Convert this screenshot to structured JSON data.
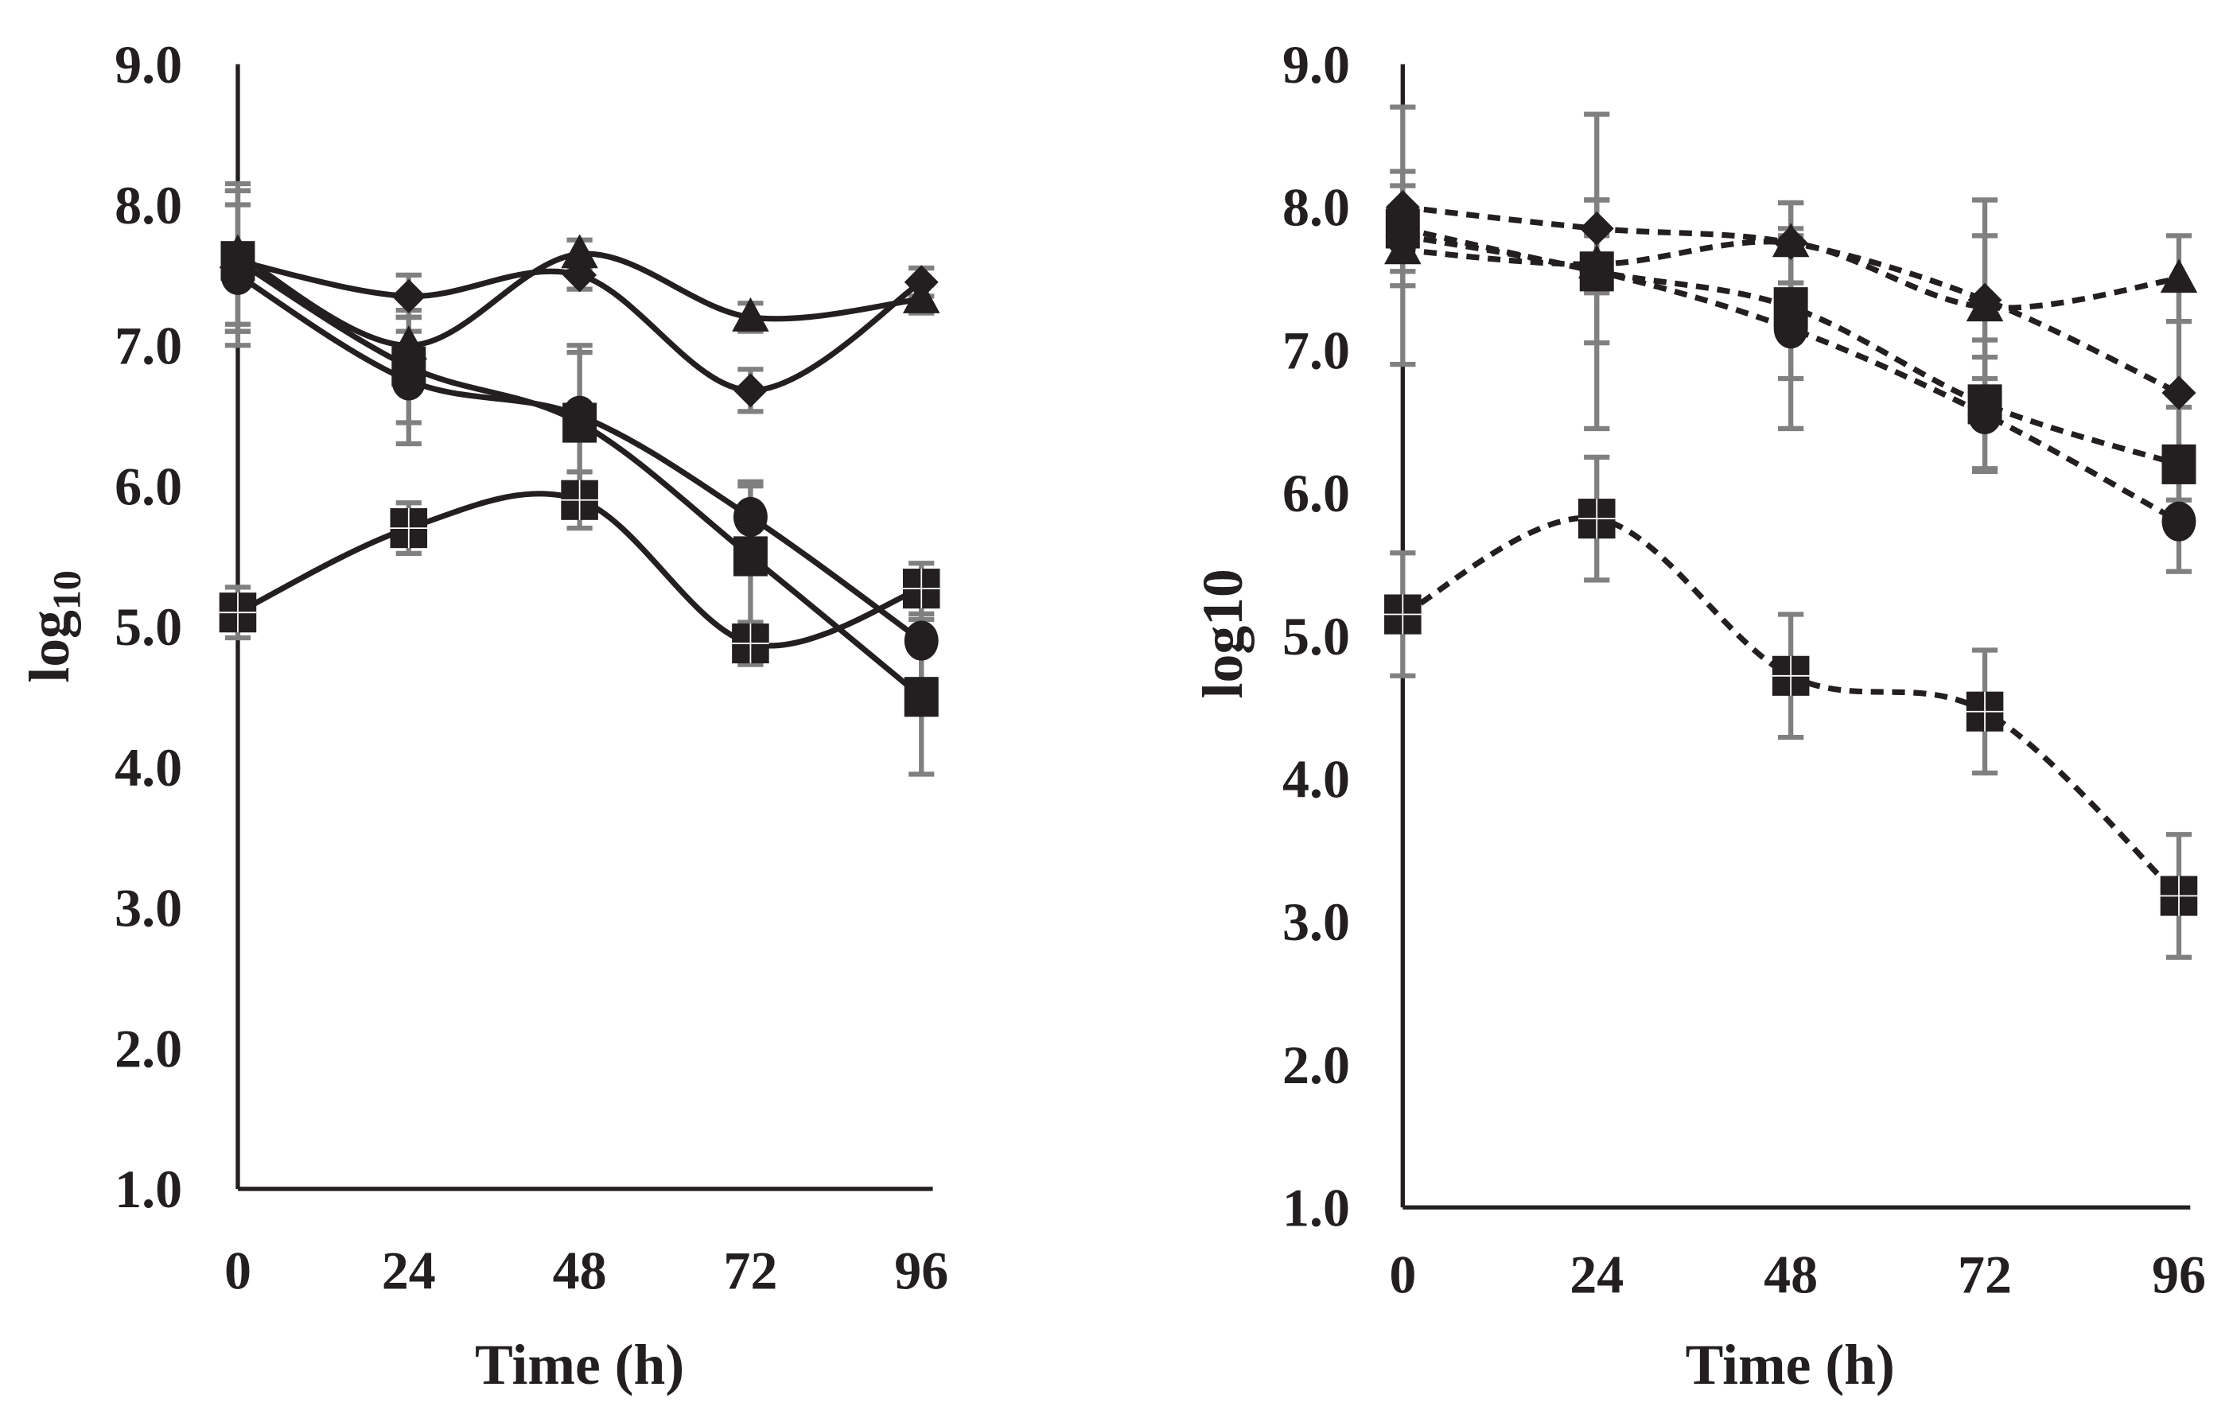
{
  "chart_data": [
    {
      "type": "line",
      "panel": "left",
      "xlabel": "Time (h)",
      "ylabel": "log",
      "ylabel_sub": "10",
      "x": [
        0,
        24,
        48,
        72,
        96
      ],
      "xticks": [
        "0",
        "24",
        "48",
        "72",
        "96"
      ],
      "ylim": [
        1.0,
        9.0
      ],
      "yticks": [
        "1.0",
        "2.0",
        "3.0",
        "4.0",
        "5.0",
        "6.0",
        "7.0",
        "8.0",
        "9.0"
      ],
      "line_style": "solid-smooth",
      "series": [
        {
          "marker": "diamond",
          "values": [
            7.6,
            7.35,
            7.5,
            6.68,
            7.45
          ],
          "err": [
            0.5,
            0.15,
            0.1,
            0.15,
            0.1
          ]
        },
        {
          "marker": "triangle",
          "values": [
            7.65,
            7.0,
            7.65,
            7.2,
            7.33
          ],
          "err": [
            0.5,
            0.1,
            0.1,
            0.1,
            0.1
          ]
        },
        {
          "marker": "circle",
          "values": [
            7.5,
            6.75,
            6.5,
            5.78,
            4.9
          ],
          "err": [
            0.5,
            0.45,
            0.5,
            0.25,
            0.35
          ]
        },
        {
          "marker": "square",
          "values": [
            7.6,
            6.85,
            6.45,
            5.5,
            4.5
          ],
          "err": [
            0.5,
            0.4,
            0.5,
            0.5,
            0.55
          ]
        },
        {
          "marker": "square-cross",
          "values": [
            5.1,
            5.7,
            5.9,
            4.88,
            5.27
          ],
          "err": [
            0.18,
            0.18,
            0.2,
            0.15,
            0.18
          ]
        }
      ]
    },
    {
      "type": "line",
      "panel": "right",
      "xlabel": "Time (h)",
      "ylabel": "log10",
      "x": [
        0,
        24,
        48,
        72,
        96
      ],
      "xticks": [
        "0",
        "24",
        "48",
        "72",
        "96"
      ],
      "ylim": [
        1.0,
        9.0
      ],
      "yticks": [
        "1.0",
        "2.0",
        "3.0",
        "4.0",
        "5.0",
        "6.0",
        "7.0",
        "8.0",
        "9.0"
      ],
      "line_style": "dashed",
      "series": [
        {
          "marker": "diamond",
          "values": [
            8.0,
            7.85,
            7.75,
            7.35,
            6.7
          ],
          "err": [
            0.15,
            0.2,
            0.28,
            0.7,
            0.75
          ]
        },
        {
          "marker": "triangle",
          "values": [
            7.7,
            7.6,
            7.75,
            7.3,
            7.5
          ],
          "err": [
            0.15,
            0.2,
            0.28,
            0.5,
            0.3
          ]
        },
        {
          "marker": "square",
          "values": [
            7.85,
            7.55,
            7.3,
            6.62,
            6.2
          ],
          "err": [
            0.4,
            0.5,
            0.5,
            0.45,
            0.4
          ]
        },
        {
          "marker": "circle",
          "values": [
            7.8,
            7.55,
            7.15,
            6.55,
            5.8
          ],
          "err": [
            0.9,
            1.1,
            0.7,
            0.4,
            0.35
          ]
        },
        {
          "marker": "square-cross",
          "values": [
            5.15,
            5.82,
            4.72,
            4.47,
            3.18
          ],
          "err": [
            0.43,
            0.43,
            0.43,
            0.43,
            0.43
          ]
        }
      ]
    }
  ]
}
